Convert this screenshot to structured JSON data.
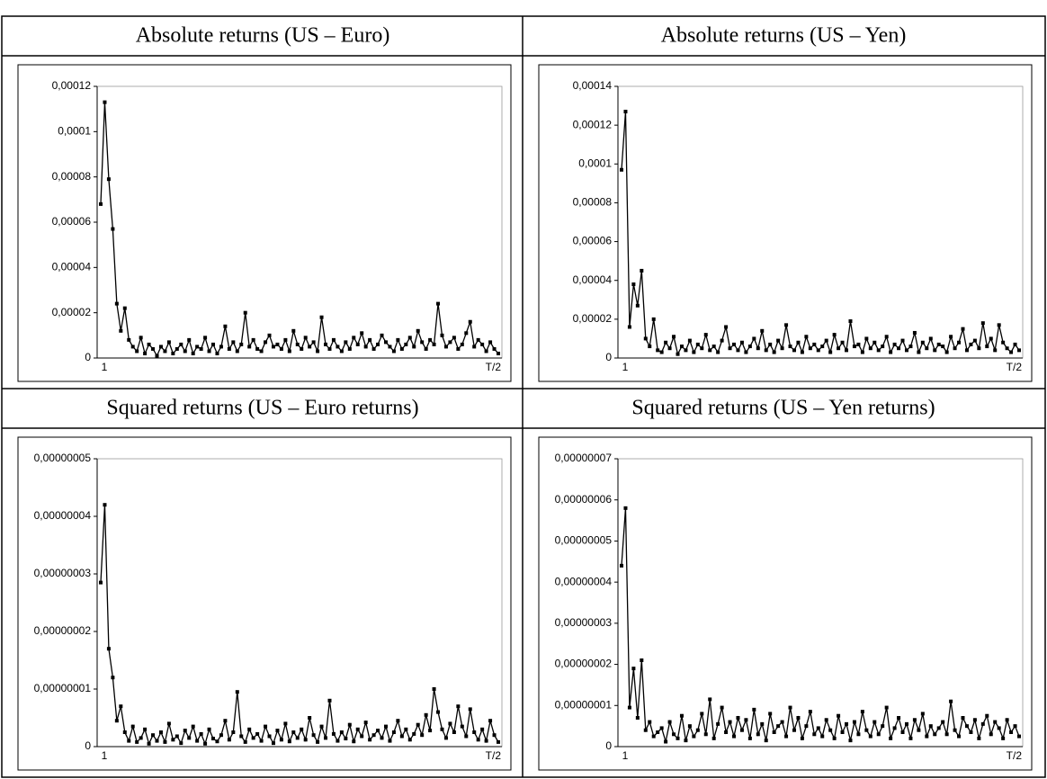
{
  "chart_data": [
    {
      "type": "line",
      "title": "Absolute returns (US – Euro)",
      "color": "#000000",
      "categories": [
        "1",
        null,
        null,
        null,
        null,
        null,
        null,
        null,
        null,
        null,
        null,
        null,
        null,
        null,
        null,
        null,
        null,
        null,
        null,
        null,
        null,
        null,
        null,
        null,
        null,
        null,
        null,
        null,
        null,
        null,
        null,
        null,
        null,
        null,
        null,
        null,
        null,
        null,
        null,
        null,
        null,
        null,
        null,
        null,
        null,
        null,
        null,
        null,
        null,
        null,
        null,
        null,
        null,
        null,
        null,
        null,
        null,
        null,
        null,
        null,
        null,
        null,
        null,
        null,
        null,
        null,
        null,
        null,
        null,
        null,
        null,
        null,
        null,
        null,
        null,
        null,
        null,
        null,
        null,
        null,
        null,
        null,
        null,
        null,
        null,
        null,
        null,
        null,
        null,
        null,
        null,
        null,
        null,
        null,
        null,
        null,
        null,
        null,
        null,
        "T/2"
      ],
      "values": [
        6.8e-05,
        0.000113,
        7.9e-05,
        5.7e-05,
        2.4e-05,
        1.2e-05,
        2.2e-05,
        8e-06,
        5e-06,
        3e-06,
        9e-06,
        2e-06,
        6e-06,
        4e-06,
        1e-06,
        5e-06,
        3e-06,
        7e-06,
        2e-06,
        4e-06,
        6e-06,
        3e-06,
        8e-06,
        2e-06,
        5e-06,
        4e-06,
        9e-06,
        3e-06,
        6e-06,
        2e-06,
        5e-06,
        1.4e-05,
        4e-06,
        7e-06,
        3e-06,
        6e-06,
        2e-05,
        5e-06,
        8e-06,
        4e-06,
        3e-06,
        7e-06,
        1e-05,
        5e-06,
        6e-06,
        4e-06,
        8e-06,
        3e-06,
        1.2e-05,
        6e-06,
        4e-06,
        9e-06,
        5e-06,
        7e-06,
        3e-06,
        1.8e-05,
        6e-06,
        4e-06,
        8e-06,
        5e-06,
        3e-06,
        7e-06,
        4e-06,
        9e-06,
        6e-06,
        1.1e-05,
        5e-06,
        8e-06,
        4e-06,
        6e-06,
        1e-05,
        7e-06,
        5e-06,
        3e-06,
        8e-06,
        4e-06,
        6e-06,
        9e-06,
        5e-06,
        1.2e-05,
        7e-06,
        4e-06,
        8e-06,
        6e-06,
        2.4e-05,
        1e-05,
        5e-06,
        7e-06,
        9e-06,
        4e-06,
        6e-06,
        1.1e-05,
        1.6e-05,
        5e-06,
        8e-06,
        6e-06,
        3e-06,
        7e-06,
        4e-06,
        2e-06
      ],
      "ylim": [
        0,
        0.00012
      ],
      "yticks": [
        0,
        {
          "value": 2e-05,
          "label": "0,00002"
        },
        {
          "value": 4e-05,
          "label": "0,00004"
        },
        {
          "value": 6e-05,
          "label": "0,00006"
        },
        {
          "value": 8e-05,
          "label": "0,00008"
        },
        {
          "value": 0.0001,
          "label": "0,0001"
        },
        {
          "value": 0.00012,
          "label": "0,00012"
        }
      ]
    },
    {
      "type": "line",
      "title": "Absolute returns (US – Yen)",
      "color": "#000000",
      "categories": [
        "1",
        null,
        null,
        null,
        null,
        null,
        null,
        null,
        null,
        null,
        null,
        null,
        null,
        null,
        null,
        null,
        null,
        null,
        null,
        null,
        null,
        null,
        null,
        null,
        null,
        null,
        null,
        null,
        null,
        null,
        null,
        null,
        null,
        null,
        null,
        null,
        null,
        null,
        null,
        null,
        null,
        null,
        null,
        null,
        null,
        null,
        null,
        null,
        null,
        null,
        null,
        null,
        null,
        null,
        null,
        null,
        null,
        null,
        null,
        null,
        null,
        null,
        null,
        null,
        null,
        null,
        null,
        null,
        null,
        null,
        null,
        null,
        null,
        null,
        null,
        null,
        null,
        null,
        null,
        null,
        null,
        null,
        null,
        null,
        null,
        null,
        null,
        null,
        null,
        null,
        null,
        null,
        null,
        null,
        null,
        null,
        null,
        null,
        null,
        "T/2"
      ],
      "values": [
        9.7e-05,
        0.000127,
        1.6e-05,
        3.8e-05,
        2.7e-05,
        4.5e-05,
        1e-05,
        6e-06,
        2e-05,
        4e-06,
        3e-06,
        8e-06,
        5e-06,
        1.1e-05,
        2e-06,
        6e-06,
        4e-06,
        9e-06,
        3e-06,
        7e-06,
        5e-06,
        1.2e-05,
        4e-06,
        6e-06,
        3e-06,
        9e-06,
        1.6e-05,
        5e-06,
        7e-06,
        4e-06,
        8e-06,
        3e-06,
        6e-06,
        1e-05,
        5e-06,
        1.4e-05,
        4e-06,
        7e-06,
        3e-06,
        9e-06,
        5e-06,
        1.7e-05,
        6e-06,
        4e-06,
        8e-06,
        3e-06,
        1.1e-05,
        5e-06,
        7e-06,
        4e-06,
        6e-06,
        9e-06,
        3e-06,
        1.2e-05,
        5e-06,
        8e-06,
        4e-06,
        1.9e-05,
        6e-06,
        7e-06,
        3e-06,
        1e-05,
        5e-06,
        8e-06,
        4e-06,
        6e-06,
        1.1e-05,
        3e-06,
        7e-06,
        5e-06,
        9e-06,
        4e-06,
        6e-06,
        1.3e-05,
        3e-06,
        8e-06,
        5e-06,
        1e-05,
        4e-06,
        7e-06,
        6e-06,
        3e-06,
        1.1e-05,
        5e-06,
        8e-06,
        1.5e-05,
        4e-06,
        7e-06,
        9e-06,
        5e-06,
        1.8e-05,
        6e-06,
        1e-05,
        4e-06,
        1.7e-05,
        8e-06,
        5e-06,
        3e-06,
        7e-06,
        4e-06
      ],
      "ylim": [
        0,
        0.00014
      ],
      "yticks": [
        0,
        {
          "value": 2e-05,
          "label": "0,00002"
        },
        {
          "value": 4e-05,
          "label": "0,00004"
        },
        {
          "value": 6e-05,
          "label": "0,00006"
        },
        {
          "value": 8e-05,
          "label": "0,00008"
        },
        {
          "value": 0.0001,
          "label": "0,0001"
        },
        {
          "value": 0.00012,
          "label": "0,00012"
        },
        {
          "value": 0.00014,
          "label": "0,00014"
        }
      ]
    },
    {
      "type": "line",
      "title": "Squared returns (US – Euro returns)",
      "color": "#000000",
      "categories": [
        "1",
        null,
        null,
        null,
        null,
        null,
        null,
        null,
        null,
        null,
        null,
        null,
        null,
        null,
        null,
        null,
        null,
        null,
        null,
        null,
        null,
        null,
        null,
        null,
        null,
        null,
        null,
        null,
        null,
        null,
        null,
        null,
        null,
        null,
        null,
        null,
        null,
        null,
        null,
        null,
        null,
        null,
        null,
        null,
        null,
        null,
        null,
        null,
        null,
        null,
        null,
        null,
        null,
        null,
        null,
        null,
        null,
        null,
        null,
        null,
        null,
        null,
        null,
        null,
        null,
        null,
        null,
        null,
        null,
        null,
        null,
        null,
        null,
        null,
        null,
        null,
        null,
        null,
        null,
        null,
        null,
        null,
        null,
        null,
        null,
        null,
        null,
        null,
        null,
        null,
        null,
        null,
        null,
        null,
        null,
        null,
        null,
        null,
        null,
        "T/2"
      ],
      "values": [
        2.85e-08,
        4.2e-08,
        1.7e-08,
        1.2e-08,
        4.5e-09,
        7e-09,
        2.5e-09,
        1e-09,
        3.5e-09,
        8e-10,
        1.5e-09,
        3e-09,
        5e-10,
        2e-09,
        1e-09,
        2.5e-09,
        8e-10,
        4e-09,
        1.2e-09,
        1.8e-09,
        6e-10,
        2.8e-09,
        1.5e-09,
        3.5e-09,
        1e-09,
        2.2e-09,
        5e-10,
        3e-09,
        1.4e-09,
        9e-10,
        2e-09,
        4.5e-09,
        1.2e-09,
        2.5e-09,
        9.5e-09,
        1.8e-09,
        8e-10,
        3e-09,
        1.5e-09,
        2.2e-09,
        1e-09,
        3.5e-09,
        1.8e-09,
        6e-10,
        2.8e-09,
        1.2e-09,
        4e-09,
        9e-10,
        2.5e-09,
        1.5e-09,
        3e-09,
        1.2e-09,
        5e-09,
        2e-09,
        8e-10,
        3.5e-09,
        1.5e-09,
        8e-09,
        2.2e-09,
        1e-09,
        2.5e-09,
        1.4e-09,
        3.8e-09,
        9e-10,
        3e-09,
        1.8e-09,
        4.2e-09,
        1.2e-09,
        2e-09,
        2.8e-09,
        1.5e-09,
        3.5e-09,
        1e-09,
        2.5e-09,
        4.5e-09,
        1.8e-09,
        3e-09,
        1.2e-09,
        2.2e-09,
        3.8e-09,
        2e-09,
        5.5e-09,
        2.8e-09,
        1e-08,
        6e-09,
        3e-09,
        1.5e-09,
        4e-09,
        2.5e-09,
        7e-09,
        3.5e-09,
        1.8e-09,
        6.5e-09,
        2.5e-09,
        1.2e-09,
        3e-09,
        1e-09,
        4.5e-09,
        2e-09,
        8e-10
      ],
      "ylim": [
        0,
        5e-08
      ],
      "yticks": [
        0,
        {
          "value": 1e-08,
          "label": "0,00000001"
        },
        {
          "value": 2e-08,
          "label": "0,00000002"
        },
        {
          "value": 3e-08,
          "label": "0,00000003"
        },
        {
          "value": 4e-08,
          "label": "0,00000004"
        },
        {
          "value": 5e-08,
          "label": "0,00000005"
        }
      ]
    },
    {
      "type": "line",
      "title": "Squared returns (US – Yen returns)",
      "color": "#000000",
      "categories": [
        "1",
        null,
        null,
        null,
        null,
        null,
        null,
        null,
        null,
        null,
        null,
        null,
        null,
        null,
        null,
        null,
        null,
        null,
        null,
        null,
        null,
        null,
        null,
        null,
        null,
        null,
        null,
        null,
        null,
        null,
        null,
        null,
        null,
        null,
        null,
        null,
        null,
        null,
        null,
        null,
        null,
        null,
        null,
        null,
        null,
        null,
        null,
        null,
        null,
        null,
        null,
        null,
        null,
        null,
        null,
        null,
        null,
        null,
        null,
        null,
        null,
        null,
        null,
        null,
        null,
        null,
        null,
        null,
        null,
        null,
        null,
        null,
        null,
        null,
        null,
        null,
        null,
        null,
        null,
        null,
        null,
        null,
        null,
        null,
        null,
        null,
        null,
        null,
        null,
        null,
        null,
        null,
        null,
        null,
        null,
        null,
        null,
        null,
        null,
        "T/2"
      ],
      "values": [
        4.4e-08,
        5.8e-08,
        9.5e-09,
        1.9e-08,
        7e-09,
        2.1e-08,
        4e-09,
        6e-09,
        2.5e-09,
        3.5e-09,
        4.5e-09,
        1.2e-09,
        6e-09,
        3e-09,
        2e-09,
        7.5e-09,
        1.5e-09,
        5e-09,
        2.5e-09,
        4e-09,
        8e-09,
        3e-09,
        1.15e-08,
        2e-09,
        5.5e-09,
        9.5e-09,
        3.5e-09,
        6e-09,
        2.5e-09,
        7e-09,
        4e-09,
        6.5e-09,
        2e-09,
        9e-09,
        3e-09,
        5.5e-09,
        1.5e-09,
        8e-09,
        3.5e-09,
        5e-09,
        6e-09,
        2.5e-09,
        9.5e-09,
        4e-09,
        7e-09,
        2e-09,
        5e-09,
        8.5e-09,
        3e-09,
        4.5e-09,
        2.5e-09,
        6.5e-09,
        4e-09,
        2e-09,
        7.5e-09,
        3.5e-09,
        5.5e-09,
        1.5e-09,
        6e-09,
        3e-09,
        8.5e-09,
        4e-09,
        2.5e-09,
        6e-09,
        3e-09,
        5e-09,
        9.5e-09,
        2e-09,
        4.5e-09,
        7e-09,
        3.5e-09,
        5.5e-09,
        2e-09,
        6.5e-09,
        4e-09,
        8e-09,
        2.5e-09,
        5e-09,
        3e-09,
        4.5e-09,
        6e-09,
        3e-09,
        1.1e-08,
        4e-09,
        2.5e-09,
        7e-09,
        5e-09,
        3.5e-09,
        6.5e-09,
        2e-09,
        5.5e-09,
        7.5e-09,
        3e-09,
        6e-09,
        4.5e-09,
        2e-09,
        6.5e-09,
        3.5e-09,
        5e-09,
        2.5e-09
      ],
      "ylim": [
        0,
        7e-08
      ],
      "yticks": [
        0,
        {
          "value": 1e-08,
          "label": "0,00000001"
        },
        {
          "value": 2e-08,
          "label": "0,00000002"
        },
        {
          "value": 3e-08,
          "label": "0,00000003"
        },
        {
          "value": 4e-08,
          "label": "0,00000004"
        },
        {
          "value": 5e-08,
          "label": "0,00000005"
        },
        {
          "value": 6e-08,
          "label": "0,00000006"
        },
        {
          "value": 7e-08,
          "label": "0,00000007"
        }
      ]
    }
  ]
}
